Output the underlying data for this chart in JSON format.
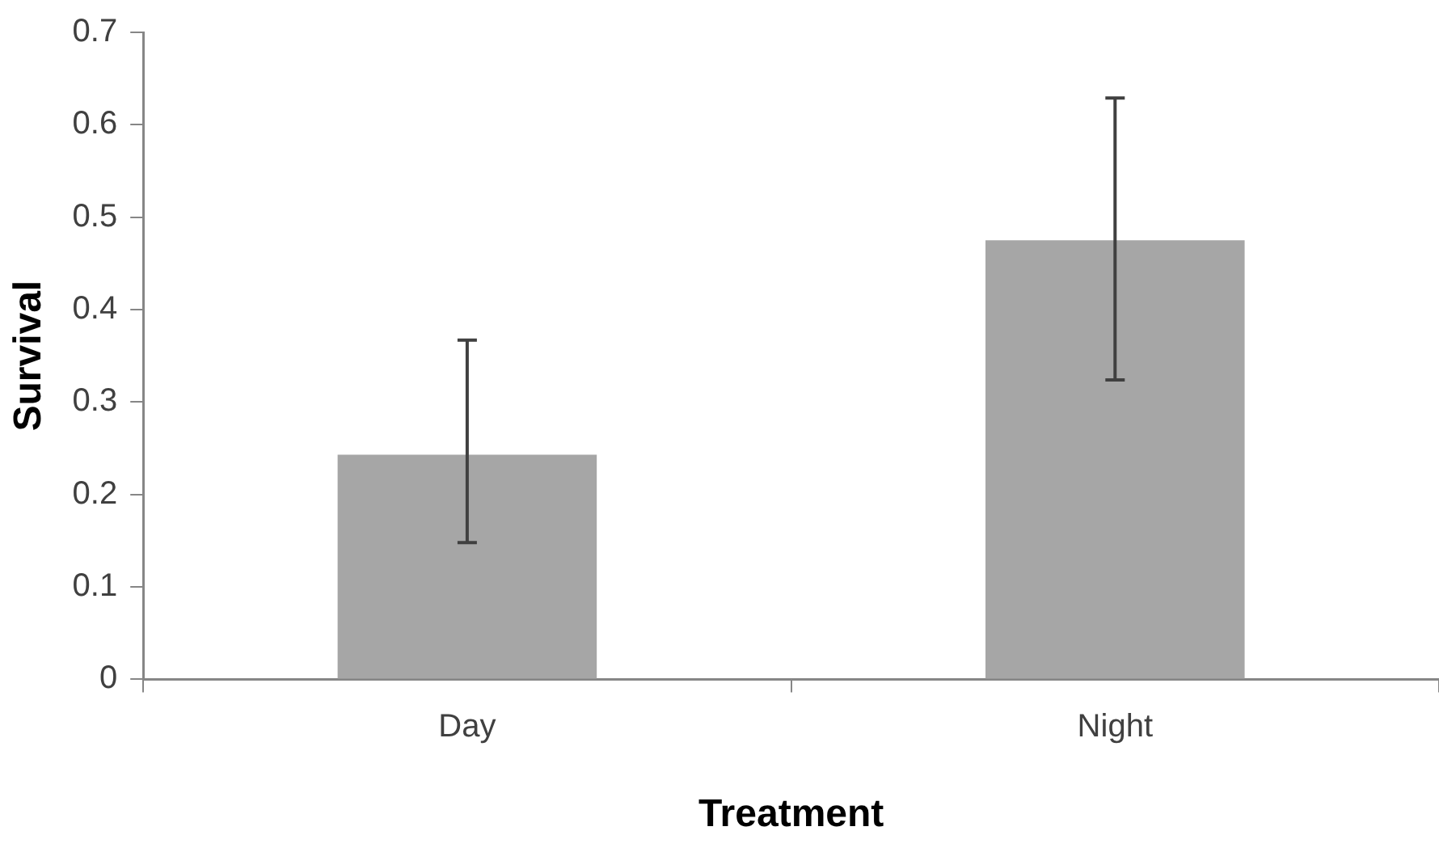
{
  "chart_data": {
    "type": "bar",
    "xlabel": "Treatment",
    "ylabel": "Survival",
    "categories": [
      "Day",
      "Night"
    ],
    "values": [
      0.243,
      0.475
    ],
    "color": "#a6a6a6",
    "errors": [
      [
        0.148,
        0.367
      ],
      [
        0.324,
        0.629
      ]
    ],
    "ylim": [
      0,
      0.7
    ],
    "yticks": [
      0,
      0.1,
      0.2,
      0.3,
      0.4,
      0.5,
      0.6,
      0.7
    ],
    "grid": false,
    "legend": false
  }
}
